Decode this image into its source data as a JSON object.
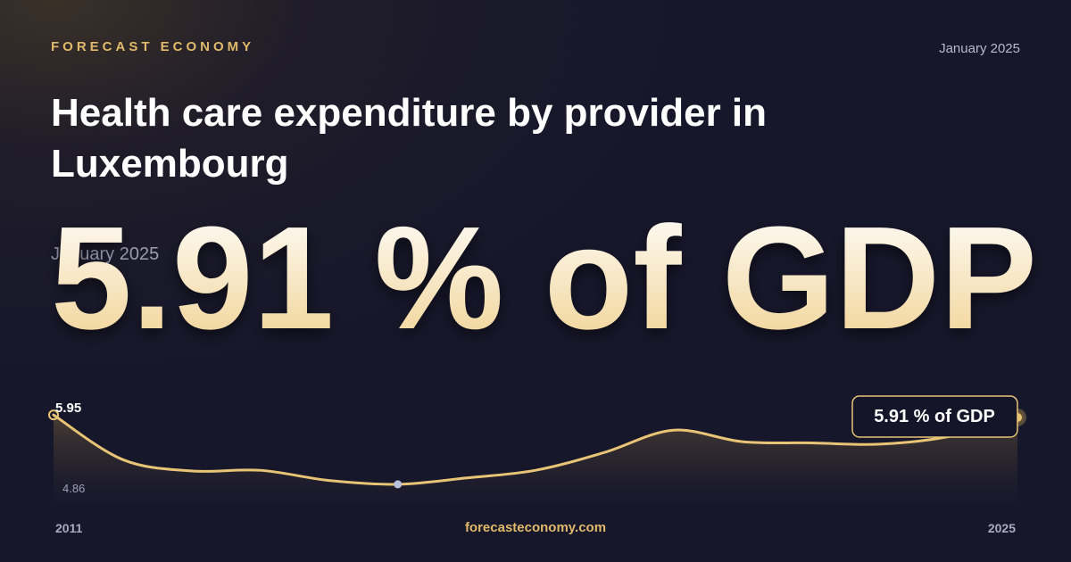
{
  "brand": "FORECAST ECONOMY",
  "date": "January 2025",
  "title": "Health care expenditure by provider in Luxembourg",
  "headline": "5.91 % of GDP",
  "site": "forecasteconomy.com",
  "chart_data": {
    "type": "line",
    "x": [
      2011,
      2012,
      2013,
      2014,
      2015,
      2016,
      2017,
      2018,
      2019,
      2020,
      2021,
      2022,
      2023,
      2024,
      2025
    ],
    "values": [
      5.95,
      5.25,
      5.07,
      5.08,
      4.92,
      4.86,
      4.96,
      5.08,
      5.36,
      5.71,
      5.53,
      5.51,
      5.49,
      5.61,
      5.91
    ],
    "color": "#e8c476",
    "xlim": [
      2011,
      2025
    ],
    "xticks": [
      2011,
      2025
    ],
    "ylim": [
      4.55,
      6.26
    ]
  }
}
